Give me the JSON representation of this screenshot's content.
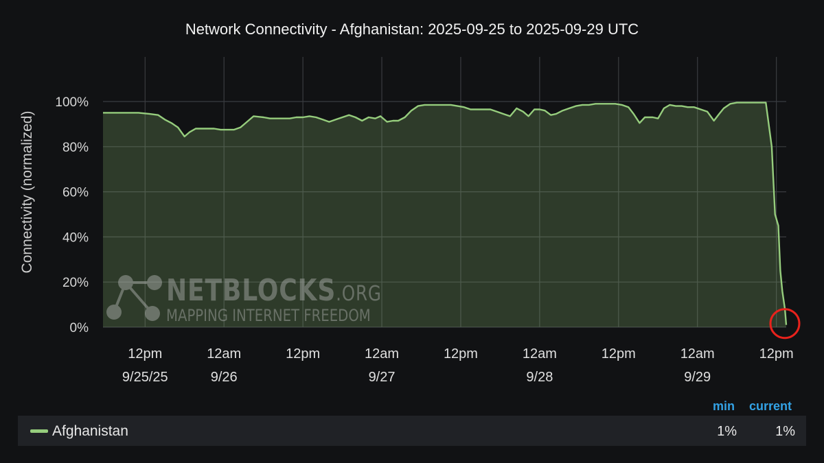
{
  "chart_data": {
    "type": "area",
    "title": "Network Connectivity - Afghanistan: 2025-09-25 to 2025-09-29 UTC",
    "ylabel": "Connectivity (normalized)",
    "xlabel": "",
    "ylim": [
      0,
      100
    ],
    "y_ticks": [
      "100%",
      "80%",
      "60%",
      "40%",
      "20%",
      "0%"
    ],
    "y_tick_values": [
      100,
      80,
      60,
      40,
      20,
      0
    ],
    "x_ticks": [
      {
        "h": 12,
        "line1": "12pm",
        "line2": "9/25/25"
      },
      {
        "h": 24,
        "line1": "12am",
        "line2": "9/26"
      },
      {
        "h": 36,
        "line1": "12pm",
        "line2": ""
      },
      {
        "h": 48,
        "line1": "12am",
        "line2": "9/27"
      },
      {
        "h": 60,
        "line1": "12pm",
        "line2": ""
      },
      {
        "h": 72,
        "line1": "12am",
        "line2": "9/28"
      },
      {
        "h": 84,
        "line1": "12pm",
        "line2": ""
      },
      {
        "h": 96,
        "line1": "12am",
        "line2": "9/29"
      },
      {
        "h": 108,
        "line1": "12pm",
        "line2": ""
      }
    ],
    "x_unit": "hours since 2025-09-25 00:00 UTC",
    "x_range": [
      5.6,
      109.5
    ],
    "grid": true,
    "series": [
      {
        "name": "Afghanistan",
        "color": "#96cd7d",
        "x": [
          5.6,
          11,
          12.7,
          14,
          15,
          16,
          17,
          18,
          18.8,
          19.7,
          20.5,
          21.5,
          22.5,
          23.5,
          24.5,
          25.5,
          26.5,
          27.5,
          28.5,
          30,
          31,
          32,
          33,
          34,
          35,
          36,
          37,
          38,
          39,
          40,
          41,
          42,
          43,
          44,
          45,
          46,
          47,
          47.8,
          48.8,
          49.7,
          50.5,
          51.5,
          52.5,
          53.5,
          54.5,
          55.5,
          56.5,
          57.5,
          58.5,
          59.5,
          60.5,
          61.5,
          62.5,
          63.5,
          64.5,
          65.5,
          66.5,
          67.5,
          68.5,
          69.5,
          70.3,
          71.2,
          72,
          72.8,
          73.7,
          74.5,
          75.5,
          76.5,
          77.5,
          78.5,
          79.5,
          80.5,
          81.5,
          82.5,
          83.5,
          84.5,
          85.5,
          86.3,
          87.2,
          88,
          89.2,
          90,
          90.9,
          91.8,
          92.7,
          93.6,
          94.5,
          95.5,
          96.5,
          97.5,
          98.5,
          99.3,
          100,
          101,
          102,
          103,
          104,
          105,
          105.6,
          106.4,
          107.3,
          107.8,
          108.3,
          108.6,
          108.9,
          109.3,
          109.5
        ],
        "values": [
          95,
          95,
          94.5,
          94,
          92,
          90.5,
          88.5,
          84.5,
          86.5,
          88,
          88,
          88,
          88,
          87.5,
          87.5,
          87.5,
          88.5,
          91,
          93.5,
          93,
          92.5,
          92.5,
          92.5,
          92.5,
          93,
          93,
          93.5,
          93,
          92,
          91,
          92,
          93,
          94,
          93,
          91.5,
          93,
          92.5,
          93.5,
          91,
          91.5,
          91.5,
          93,
          96,
          98,
          98.5,
          98.5,
          98.5,
          98.5,
          98.5,
          98,
          97.5,
          96.5,
          96.5,
          96.5,
          96.5,
          95.5,
          94.5,
          93.5,
          97,
          95.5,
          93.5,
          96.5,
          96.5,
          96,
          94,
          94.5,
          96,
          97,
          98,
          98.5,
          98.5,
          99,
          99,
          99,
          99,
          98.5,
          97.5,
          94.5,
          90.5,
          93,
          93,
          92.5,
          97,
          98.5,
          98,
          98,
          97.5,
          97.5,
          96.5,
          95.5,
          91.5,
          94.5,
          97,
          99,
          99.5,
          99.5,
          99.5,
          99.5,
          99.5,
          99.5,
          80,
          50,
          45,
          25,
          16,
          8,
          1
        ]
      }
    ],
    "highlight": {
      "x": 109.5,
      "value": 1,
      "color": "#e8221c"
    }
  },
  "watermark": {
    "brand": "NETBLOCKS",
    "suffix": ".ORG",
    "tagline": "MAPPING INTERNET FREEDOM"
  },
  "legend": {
    "headers": {
      "min": "min",
      "current": "current"
    },
    "rows": [
      {
        "name": "Afghanistan",
        "color": "#96cd7d",
        "min": "1%",
        "current": "1%"
      }
    ]
  }
}
